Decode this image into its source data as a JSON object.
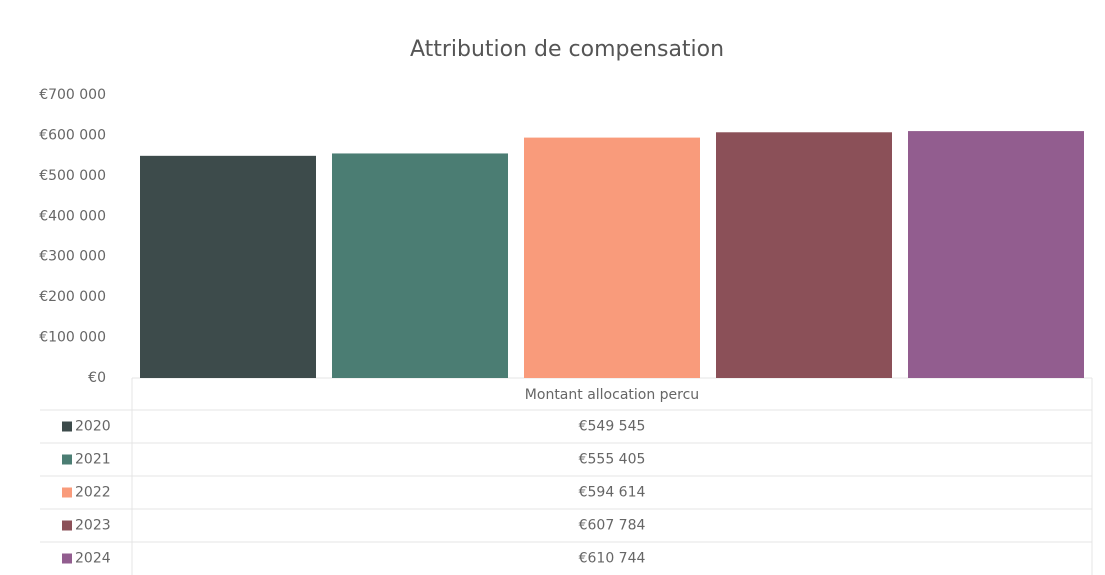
{
  "chart_data": {
    "type": "bar",
    "title": "Attribution de compensation",
    "categories": [
      "Montant allocation percu"
    ],
    "series": [
      {
        "name": "2020",
        "color": "#3d4b4b",
        "values": [
          549545
        ],
        "value_labels": [
          "€549 545"
        ]
      },
      {
        "name": "2021",
        "color": "#4b7d73",
        "values": [
          555405
        ],
        "value_labels": [
          "€555 405"
        ]
      },
      {
        "name": "2022",
        "color": "#f99b7b",
        "values": [
          594614
        ],
        "value_labels": [
          "€594 614"
        ]
      },
      {
        "name": "2023",
        "color": "#8b5058",
        "values": [
          607784
        ],
        "value_labels": [
          "€607 784"
        ]
      },
      {
        "name": "2024",
        "color": "#925d8f",
        "values": [
          610744
        ],
        "value_labels": [
          "€610 744"
        ]
      }
    ],
    "ylim": [
      0,
      700000
    ],
    "yticks": [
      {
        "value": 0,
        "label": "€0"
      },
      {
        "value": 100000,
        "label": "€100 000"
      },
      {
        "value": 200000,
        "label": "€200 000"
      },
      {
        "value": 300000,
        "label": "€300 000"
      },
      {
        "value": 400000,
        "label": "€400 000"
      },
      {
        "value": 500000,
        "label": "€500 000"
      },
      {
        "value": 600000,
        "label": "€600 000"
      },
      {
        "value": 700000,
        "label": "€700 000"
      }
    ],
    "grid": false,
    "data_table": true
  }
}
